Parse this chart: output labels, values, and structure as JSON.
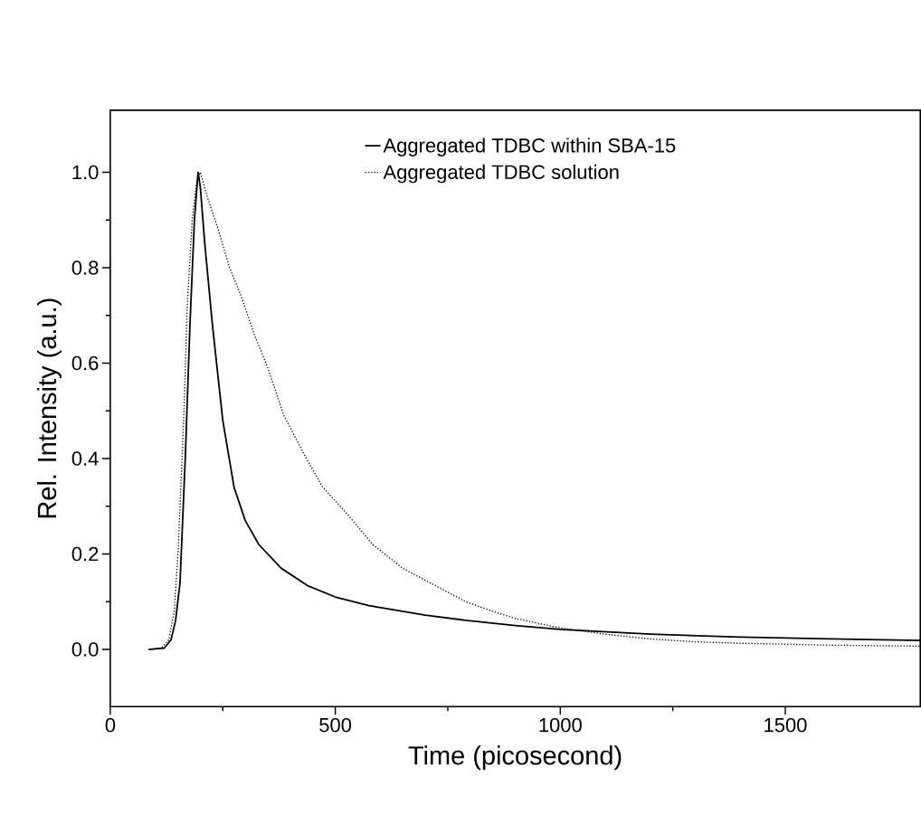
{
  "chart_data": {
    "type": "line",
    "xlabel": "Time (picosecond)",
    "ylabel": "Rel. Intensity (a.u.)",
    "xlim": [
      0,
      1800
    ],
    "xticks": [
      0,
      500,
      1000,
      1500
    ],
    "ylim": [
      -0.12,
      1.13
    ],
    "yticks": [
      {
        "value": 0,
        "label": "0.0"
      },
      0.2,
      0.4,
      0.6,
      0.8,
      {
        "value": 1,
        "label": "1.0"
      }
    ],
    "legend": "top right",
    "grid": false,
    "series": [
      {
        "name": "Aggregated TDBC within SBA-15",
        "color": "#000000",
        "line_style": "solid",
        "x": [
          85,
          120,
          135,
          145,
          155,
          167,
          177,
          187,
          195,
          200,
          210,
          227,
          250,
          275,
          300,
          330,
          380,
          440,
          500,
          575,
          700,
          790,
          900,
          1000,
          1200,
          1400,
          1600,
          1800
        ],
        "values": [
          0,
          0.003,
          0.02,
          0.06,
          0.14,
          0.41,
          0.68,
          0.9,
          1.0,
          0.97,
          0.85,
          0.68,
          0.48,
          0.34,
          0.27,
          0.22,
          0.17,
          0.133,
          0.11,
          0.092,
          0.072,
          0.061,
          0.05,
          0.042,
          0.032,
          0.026,
          0.022,
          0.019
        ]
      },
      {
        "name": "Aggregated TDBC solution",
        "color": "#000000",
        "line_style": "dotted",
        "x": [
          110,
          130,
          142,
          151,
          163,
          171,
          182,
          192,
          200,
          215,
          240,
          265,
          289,
          320,
          350,
          386,
          430,
          472,
          530,
          583,
          650,
          720,
          790,
          850,
          900,
          1000,
          1100,
          1200,
          1300,
          1400,
          1600,
          1800
        ],
        "values": [
          0,
          0.02,
          0.08,
          0.21,
          0.48,
          0.72,
          0.9,
          0.98,
          1.0,
          0.95,
          0.88,
          0.8,
          0.745,
          0.66,
          0.59,
          0.49,
          0.41,
          0.34,
          0.28,
          0.22,
          0.17,
          0.135,
          0.1,
          0.08,
          0.065,
          0.045,
          0.032,
          0.022,
          0.016,
          0.013,
          0.009,
          0.007
        ]
      }
    ]
  }
}
